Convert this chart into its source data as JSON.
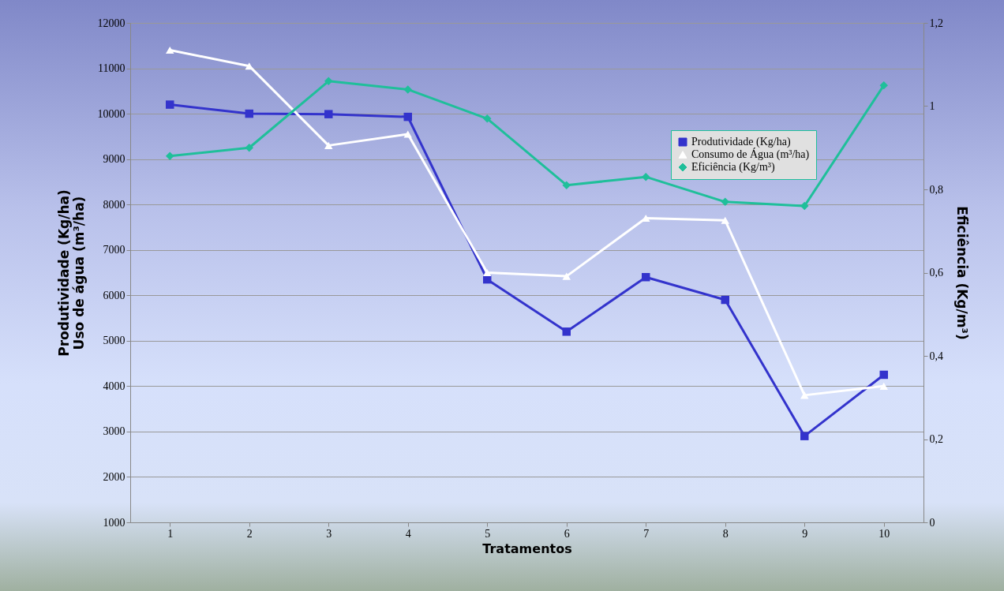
{
  "chart_data": {
    "type": "line",
    "xlabel": "Tratamentos",
    "ylabel": "Produtividade (Kg/ha)\nUso de água (m³/ha)",
    "y2label": "Eficiência (Kg/m³)",
    "categories": [
      "1",
      "2",
      "3",
      "4",
      "5",
      "6",
      "7",
      "8",
      "9",
      "10"
    ],
    "series": [
      {
        "name": "Produtividade (Kg/ha)",
        "color": "#3333cc",
        "marker": "square",
        "values": [
          10200,
          10000,
          9990,
          9930,
          6350,
          5200,
          6400,
          5900,
          2900,
          4250
        ]
      },
      {
        "name": "Consumo de Água (m³/ha)",
        "color": "#ffffff",
        "marker": "triangle",
        "values": [
          11400,
          11050,
          9300,
          9550,
          6500,
          6420,
          7700,
          7650,
          3800,
          4000
        ]
      },
      {
        "name": "Eficiência (Kg/m³)",
        "color": "#1fbf9a",
        "marker": "diamond",
        "axis": "y2",
        "values": [
          0.88,
          0.9,
          1.06,
          1.04,
          0.97,
          0.81,
          0.83,
          0.77,
          0.76,
          1.05
        ]
      }
    ],
    "ylim": [
      1000,
      12000
    ],
    "yticks": [
      1000,
      2000,
      3000,
      4000,
      5000,
      6000,
      7000,
      8000,
      9000,
      10000,
      11000,
      12000
    ],
    "y2lim": [
      0,
      1.2
    ],
    "y2ticks": [
      0,
      {
        "value": 0.2,
        "label": "0,2"
      },
      {
        "value": 0.4,
        "label": "0,4"
      },
      {
        "value": 0.6,
        "label": "0,6"
      },
      {
        "value": 0.8,
        "label": "0,8"
      },
      1,
      {
        "value": 1.2,
        "label": "1,2"
      }
    ],
    "grid": "y",
    "legend": "top right"
  }
}
